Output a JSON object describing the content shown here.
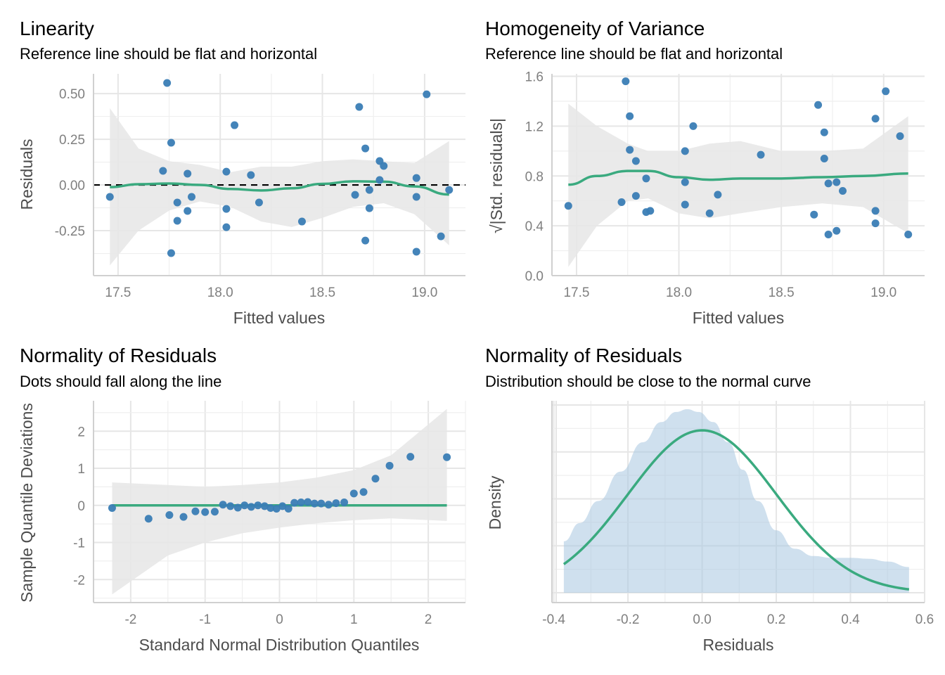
{
  "chart_data": [
    {
      "id": "linearity",
      "type": "scatter",
      "title": "Linearity",
      "subtitle": "Reference line should be flat and horizontal",
      "xlabel": "Fitted values",
      "ylabel": "Residuals",
      "xlim": [
        17.38,
        19.2
      ],
      "ylim": [
        -0.496,
        0.608
      ],
      "xticks": [
        17.5,
        18.0,
        18.5,
        19.0
      ],
      "xtick_labels": [
        "17.5",
        "18.0",
        "18.5",
        "19.0"
      ],
      "yticks": [
        -0.25,
        0.0,
        0.25,
        0.5
      ],
      "ytick_labels": [
        "-0.25",
        "0.00",
        "0.25",
        "0.50"
      ],
      "grid": true,
      "reference_line": {
        "y": 0,
        "style": "dashed",
        "color": "#000000"
      },
      "point_color": "#3A7DB5",
      "line_color": "#3AAA7F",
      "band_color": "#E6E6E6",
      "points": [
        [
          17.46,
          -0.065
        ],
        [
          17.72,
          0.077
        ],
        [
          17.74,
          0.558
        ],
        [
          17.76,
          0.231
        ],
        [
          17.76,
          -0.373
        ],
        [
          17.79,
          -0.096
        ],
        [
          17.79,
          -0.196
        ],
        [
          17.84,
          0.062
        ],
        [
          17.84,
          -0.142
        ],
        [
          17.86,
          -0.065
        ],
        [
          18.03,
          0.073
        ],
        [
          18.03,
          -0.131
        ],
        [
          18.03,
          -0.231
        ],
        [
          18.07,
          0.327
        ],
        [
          18.15,
          0.054
        ],
        [
          18.19,
          -0.096
        ],
        [
          18.4,
          -0.2
        ],
        [
          18.66,
          -0.054
        ],
        [
          18.68,
          0.427
        ],
        [
          18.71,
          0.2
        ],
        [
          18.71,
          -0.304
        ],
        [
          18.73,
          -0.027
        ],
        [
          18.73,
          -0.127
        ],
        [
          18.78,
          0.131
        ],
        [
          18.78,
          0.027
        ],
        [
          18.8,
          0.104
        ],
        [
          18.96,
          0.038
        ],
        [
          18.96,
          -0.065
        ],
        [
          18.96,
          -0.365
        ],
        [
          19.01,
          0.496
        ],
        [
          19.08,
          -0.281
        ],
        [
          19.12,
          -0.027
        ]
      ],
      "smooth": {
        "x": [
          17.46,
          17.6,
          17.75,
          17.9,
          18.05,
          18.2,
          18.35,
          18.5,
          18.65,
          18.8,
          18.95,
          19.12
        ],
        "y": [
          -0.012,
          0.004,
          0.008,
          0.0,
          -0.022,
          -0.03,
          -0.018,
          0.006,
          0.02,
          0.018,
          -0.008,
          -0.052
        ],
        "lower": [
          -0.44,
          -0.25,
          -0.14,
          -0.09,
          -0.12,
          -0.2,
          -0.23,
          -0.18,
          -0.12,
          -0.1,
          -0.16,
          -0.33
        ],
        "upper": [
          0.42,
          0.2,
          0.13,
          0.11,
          0.07,
          0.1,
          0.1,
          0.13,
          0.14,
          0.13,
          0.12,
          0.24
        ]
      }
    },
    {
      "id": "homogeneity",
      "type": "scatter",
      "title": "Homogeneity of Variance",
      "subtitle": "Reference line should be flat and horizontal",
      "xlabel": "Fitted values",
      "ylabel": "√|Std. residuals|",
      "xlim": [
        17.38,
        19.2
      ],
      "ylim": [
        0.0,
        1.62
      ],
      "xticks": [
        17.5,
        18.0,
        18.5,
        19.0
      ],
      "xtick_labels": [
        "17.5",
        "18.0",
        "18.5",
        "19.0"
      ],
      "yticks": [
        0.0,
        0.4,
        0.8,
        1.2,
        1.6
      ],
      "ytick_labels": [
        "0.0",
        "0.4",
        "0.8",
        "1.2",
        "1.6"
      ],
      "grid": true,
      "point_color": "#3A7DB5",
      "line_color": "#3AAA7F",
      "band_color": "#E6E6E6",
      "points": [
        [
          17.46,
          0.56
        ],
        [
          17.72,
          0.59
        ],
        [
          17.74,
          1.56
        ],
        [
          17.76,
          1.28
        ],
        [
          17.76,
          1.01
        ],
        [
          17.79,
          0.92
        ],
        [
          17.79,
          0.64
        ],
        [
          17.84,
          0.78
        ],
        [
          17.84,
          0.51
        ],
        [
          17.86,
          0.52
        ],
        [
          18.03,
          1.0
        ],
        [
          18.03,
          0.75
        ],
        [
          18.03,
          0.57
        ],
        [
          18.07,
          1.2
        ],
        [
          18.15,
          0.5
        ],
        [
          18.19,
          0.65
        ],
        [
          18.4,
          0.97
        ],
        [
          18.66,
          0.49
        ],
        [
          18.68,
          1.37
        ],
        [
          18.71,
          1.15
        ],
        [
          18.71,
          0.94
        ],
        [
          18.73,
          0.74
        ],
        [
          18.73,
          0.33
        ],
        [
          18.77,
          0.75
        ],
        [
          18.77,
          0.36
        ],
        [
          18.8,
          0.68
        ],
        [
          18.96,
          1.26
        ],
        [
          18.96,
          0.52
        ],
        [
          18.96,
          0.42
        ],
        [
          19.01,
          1.48
        ],
        [
          19.08,
          1.12
        ],
        [
          19.12,
          0.33
        ]
      ],
      "smooth": {
        "x": [
          17.46,
          17.6,
          17.75,
          17.85,
          18.0,
          18.15,
          18.3,
          18.5,
          18.7,
          18.9,
          19.12
        ],
        "y": [
          0.73,
          0.8,
          0.84,
          0.84,
          0.79,
          0.77,
          0.78,
          0.78,
          0.79,
          0.8,
          0.82
        ],
        "lower": [
          0.07,
          0.4,
          0.6,
          0.62,
          0.5,
          0.46,
          0.5,
          0.55,
          0.58,
          0.55,
          0.34
        ],
        "upper": [
          1.38,
          1.2,
          1.06,
          1.0,
          1.0,
          1.06,
          1.08,
          1.0,
          1.0,
          1.02,
          1.28
        ]
      }
    },
    {
      "id": "qq",
      "type": "scatter",
      "title": "Normality of Residuals",
      "subtitle": "Dots should fall along the line",
      "xlabel": "Standard Normal Distribution Quantiles",
      "ylabel": "Sample Quantile Deviations",
      "xlim": [
        -2.5,
        2.5
      ],
      "ylim": [
        -2.62,
        2.82
      ],
      "xticks": [
        -2,
        -1,
        0,
        1,
        2
      ],
      "xtick_labels": [
        "-2",
        "-1",
        "0",
        "1",
        "2"
      ],
      "yticks": [
        -2,
        -1,
        0,
        1,
        2
      ],
      "ytick_labels": [
        "-2",
        "-1",
        "0",
        "1",
        "2"
      ],
      "grid": true,
      "reference_line": {
        "y": 0,
        "style": "solid",
        "color": "#3AAA7F"
      },
      "point_color": "#3A7DB5",
      "band_color": "#E6E6E6",
      "points": [
        [
          -2.25,
          -0.07
        ],
        [
          -1.76,
          -0.36
        ],
        [
          -1.48,
          -0.26
        ],
        [
          -1.29,
          -0.31
        ],
        [
          -1.13,
          -0.16
        ],
        [
          -1.0,
          -0.18
        ],
        [
          -0.87,
          -0.17
        ],
        [
          -0.76,
          0.02
        ],
        [
          -0.66,
          -0.02
        ],
        [
          -0.56,
          -0.06
        ],
        [
          -0.47,
          0.0
        ],
        [
          -0.38,
          -0.04
        ],
        [
          -0.29,
          0.0
        ],
        [
          -0.2,
          -0.02
        ],
        [
          -0.12,
          -0.07
        ],
        [
          -0.04,
          -0.09
        ],
        [
          0.04,
          -0.02
        ],
        [
          0.12,
          -0.09
        ],
        [
          0.2,
          0.07
        ],
        [
          0.29,
          0.08
        ],
        [
          0.38,
          0.09
        ],
        [
          0.47,
          0.05
        ],
        [
          0.56,
          0.05
        ],
        [
          0.66,
          0.02
        ],
        [
          0.76,
          0.06
        ],
        [
          0.87,
          0.08
        ],
        [
          1.0,
          0.32
        ],
        [
          1.13,
          0.36
        ],
        [
          1.29,
          0.72
        ],
        [
          1.48,
          1.07
        ],
        [
          1.76,
          1.31
        ],
        [
          2.25,
          1.3
        ]
      ],
      "band": {
        "x": [
          -2.25,
          -1.5,
          -1.0,
          -0.5,
          0.0,
          0.5,
          1.0,
          1.5,
          2.25
        ],
        "lower": [
          -2.4,
          -1.35,
          -1.0,
          -0.75,
          -0.6,
          -0.48,
          -0.4,
          -0.35,
          -0.42
        ],
        "upper": [
          0.62,
          0.55,
          0.5,
          0.55,
          0.62,
          0.75,
          0.95,
          1.35,
          2.6
        ]
      }
    },
    {
      "id": "density",
      "type": "area",
      "title": "Normality of Residuals",
      "subtitle": "Distribution should be close to the normal curve",
      "xlabel": "Residuals",
      "ylabel": "Density",
      "xlim": [
        -0.405,
        0.6
      ],
      "ylim": [
        0,
        1
      ],
      "xticks": [
        -0.4,
        -0.2,
        0.0,
        0.2,
        0.4,
        0.6
      ],
      "xtick_labels": [
        "-0.4",
        "-0.2",
        "0.0",
        "0.2",
        "0.4",
        "0.6"
      ],
      "grid": true,
      "fill_color": "#A8C6E0",
      "line_color": "#3AAA7F",
      "density_fill": {
        "x": [
          -0.373,
          -0.33,
          -0.28,
          -0.22,
          -0.16,
          -0.11,
          -0.07,
          -0.04,
          -0.01,
          0.03,
          0.07,
          0.11,
          0.15,
          0.2,
          0.25,
          0.3,
          0.35,
          0.4,
          0.45,
          0.5,
          0.558
        ],
        "y": [
          0.28,
          0.38,
          0.5,
          0.66,
          0.82,
          0.93,
          0.985,
          1.0,
          0.985,
          0.93,
          0.82,
          0.67,
          0.5,
          0.34,
          0.24,
          0.2,
          0.19,
          0.19,
          0.185,
          0.17,
          0.14
        ]
      },
      "normal_curve": {
        "mean": 0.0,
        "sd": 0.2,
        "peak": 0.885,
        "x_from": -0.373,
        "x_to": 0.558
      }
    }
  ]
}
